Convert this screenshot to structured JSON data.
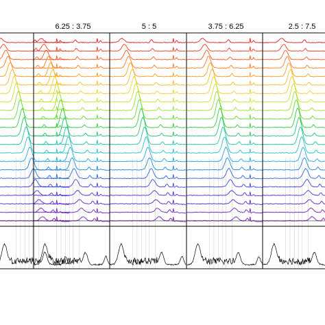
{
  "chart_data": {
    "type": "line",
    "title": "",
    "xlabel": "",
    "ylabel": "",
    "grid": false,
    "legend": "none",
    "panels": [
      {
        "label": "",
        "peak_shift": 0.0
      },
      {
        "label": "6.25 : 3.75",
        "peak_shift": 0.0
      },
      {
        "label": "5 : 5",
        "peak_shift": 0.06
      },
      {
        "label": "3.75 : 6.25",
        "peak_shift": 0.11
      },
      {
        "label": "2.5 : 7.5",
        "peak_shift": 0.15
      }
    ],
    "trace_count": 22,
    "trace_colors": [
      "#e41a1c",
      "#f03b1f",
      "#f7581f",
      "#fb7a1e",
      "#fc9b20",
      "#f7bb22",
      "#e8d52a",
      "#c8e22c",
      "#9ae02f",
      "#64d935",
      "#2ecc3c",
      "#1ec46c",
      "#1fc4a0",
      "#24c0c7",
      "#1fa6d9",
      "#1a86e0",
      "#2a63e2",
      "#3a45e0",
      "#4b30d8",
      "#5a24cf",
      "#6a20c6",
      "#7a1cbf"
    ],
    "bottom_trace_color": "#000000",
    "vertical_line_color": "#c8c8c8"
  }
}
